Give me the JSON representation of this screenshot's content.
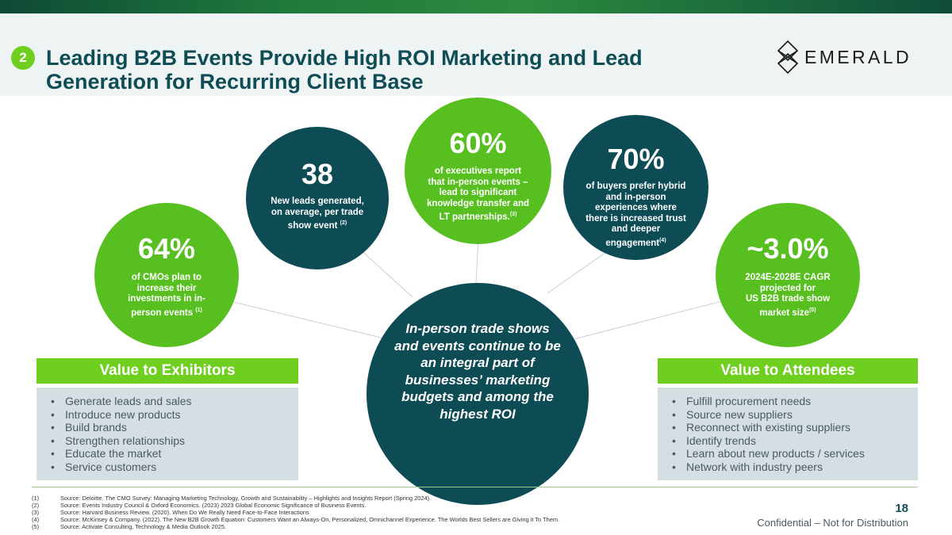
{
  "header": {
    "section_number": "2",
    "title": "Leading B2B Events Provide High ROI Marketing and Lead Generation for Recurring Client Base",
    "logo_text": "EMERALD"
  },
  "stats": [
    {
      "value": "64%",
      "lines": [
        "of CMOs plan to",
        "increase their",
        "investments in in-",
        "person events"
      ],
      "note": "(1)"
    },
    {
      "value": "38",
      "lines": [
        "New leads generated,",
        "on average, per trade",
        "show event"
      ],
      "note": "(2)"
    },
    {
      "value": "60%",
      "lines": [
        "of executives report",
        "that in-person events –",
        "lead to significant",
        "knowledge transfer and",
        "LT partnerships."
      ],
      "note": "(3)"
    },
    {
      "value": "70%",
      "lines": [
        "of buyers prefer hybrid",
        "and in-person",
        "experiences where",
        "there is increased trust",
        "and deeper",
        "engagement"
      ],
      "note": "(4)"
    },
    {
      "value": "~3.0%",
      "lines": [
        "2024E-2028E CAGR",
        "projected for",
        "US B2B trade show",
        "market size"
      ],
      "note": "(5)"
    }
  ],
  "center_text": "In-person trade shows and events continue to be an integral part of businesses’ marketing budgets and among the highest ROI",
  "exhibitors": {
    "heading": "Value to Exhibitors",
    "items": [
      "Generate leads and sales",
      "Introduce new products",
      "Build brands",
      "Strengthen relationships",
      "Educate the market",
      "Service customers"
    ]
  },
  "attendees": {
    "heading": "Value to Attendees",
    "items": [
      "Fulfill procurement needs",
      "Source new suppliers",
      "Reconnect with existing suppliers",
      "Identify trends",
      "Learn about new products / services",
      "Network with industry peers"
    ]
  },
  "footnotes": [
    {
      "num": "(1)",
      "text": "Source: Deloitte. The CMO Survey: Managing Marketing Technology, Growth and Sustainability – Highlights and Insights Report (Spring 2024)."
    },
    {
      "num": "(2)",
      "text": "Source: Events Industry Council & Oxford Economics. (2023) 2023 Global Economic Significance of Business Events."
    },
    {
      "num": "(3)",
      "text": "Source: Harvard Business Review. (2020). When Do We Really Need Face-to-Face Interactions"
    },
    {
      "num": "(4)",
      "text": "Source: McKinsey & Company. (2022). The New B2B Growth Equation: Customers Want an Always-On, Personalized, Omnichannel Experience. The Worlds Best Sellers are Giving it To Them."
    },
    {
      "num": "(5)",
      "text": "Source: Activate Consulting, Technology & Media Outlook 2025."
    }
  ],
  "page_number": "18",
  "confidential": "Confidential – Not for Distribution",
  "colors": {
    "green": "#58bf21",
    "teal": "#0d4b55",
    "title": "#0e4d55",
    "panel": "#d5dfe3"
  }
}
